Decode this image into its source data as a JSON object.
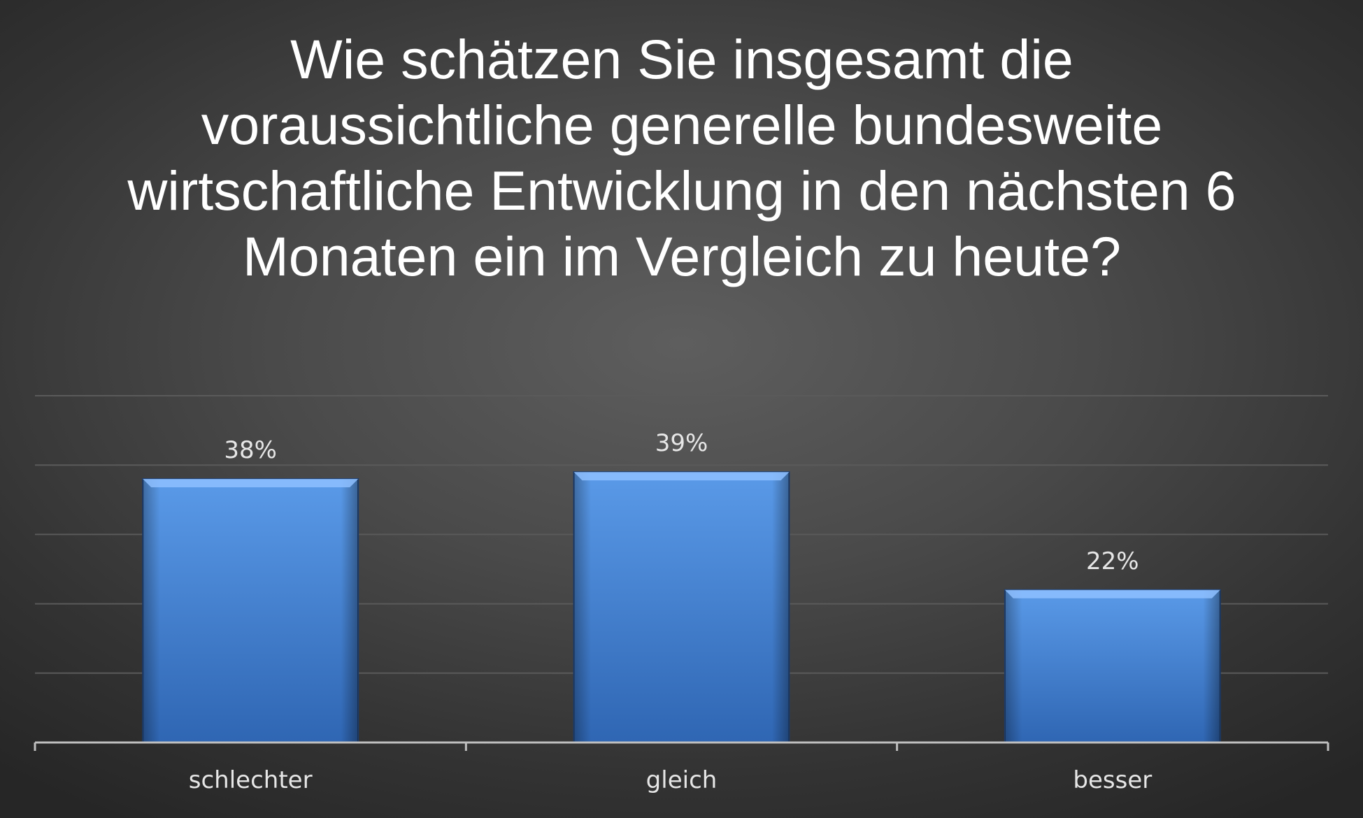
{
  "chart_data": {
    "type": "bar",
    "title": "Wie schätzen Sie insgesamt die voraussichtliche generelle bundesweite wirtschaftliche Entwicklung in den nächsten 6 Monaten ein im Vergleich zu heute?",
    "categories": [
      "schlechter",
      "gleich",
      "besser"
    ],
    "values": [
      38,
      39,
      22
    ],
    "data_labels": [
      "38%",
      "39%",
      "22%"
    ],
    "unit": "%",
    "ylim": [
      0,
      50
    ],
    "grid": true,
    "legend": "none",
    "colors": {
      "bar_top": "#5a9ae8",
      "bar_bottom": "#2f66b3",
      "bar_cap": "#8ec0ff",
      "bar_edge": "#1f3f70"
    }
  }
}
